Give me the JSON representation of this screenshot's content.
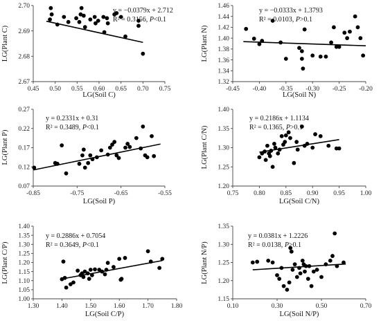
{
  "chart_data": [
    {
      "type": "scatter",
      "xlabel": "LG(Soil C)",
      "ylabel": "LG(Plant C)",
      "xlim": [
        0.45,
        0.75
      ],
      "ylim": [
        2.67,
        2.7
      ],
      "xticks": [
        0.45,
        0.5,
        0.55,
        0.6,
        0.65,
        0.7,
        0.75
      ],
      "yticks": [
        2.67,
        2.68,
        2.69,
        2.7
      ],
      "xtick_labels": [
        "0.45",
        "0.50",
        "0.55",
        "0.60",
        "0.65",
        "0.70",
        "0.75"
      ],
      "ytick_labels": [
        "2.67",
        "2.68",
        "2.69",
        "2.70"
      ],
      "equation": "y = −0.0379x + 2.712",
      "r2": "R² = 0.3156, ",
      "p": "P",
      "p_suffix": "<0.1",
      "trend": {
        "slope": -0.0379,
        "intercept": 2.712,
        "x_range": [
          0.48,
          0.7
        ]
      },
      "points": [
        [
          0.488,
          2.6945
        ],
        [
          0.49,
          2.699
        ],
        [
          0.492,
          2.6965
        ],
        [
          0.505,
          2.6925
        ],
        [
          0.52,
          2.6955
        ],
        [
          0.53,
          2.6935
        ],
        [
          0.555,
          2.6935
        ],
        [
          0.558,
          2.6965
        ],
        [
          0.56,
          2.699
        ],
        [
          0.565,
          2.696
        ],
        [
          0.568,
          2.6915
        ],
        [
          0.58,
          2.6945
        ],
        [
          0.59,
          2.6955
        ],
        [
          0.592,
          2.693
        ],
        [
          0.598,
          2.694
        ],
        [
          0.61,
          2.6955
        ],
        [
          0.618,
          2.695
        ],
        [
          0.62,
          2.693
        ],
        [
          0.635,
          2.6965
        ],
        [
          0.64,
          2.697
        ],
        [
          0.65,
          2.6955
        ],
        [
          0.66,
          2.6878
        ],
        [
          0.69,
          2.694
        ],
        [
          0.69,
          2.692
        ],
        [
          0.7,
          2.681
        ],
        [
          0.612,
          2.6895
        ],
        [
          0.548,
          2.695
        ]
      ]
    },
    {
      "type": "scatter",
      "xlabel": "LG(Soil N)",
      "ylabel": "LG(Plant N)",
      "xlim": [
        -0.45,
        -0.2
      ],
      "ylim": [
        1.32,
        1.46
      ],
      "xticks": [
        -0.45,
        -0.4,
        -0.35,
        -0.3,
        -0.25,
        -0.2
      ],
      "yticks": [
        1.32,
        1.34,
        1.36,
        1.38,
        1.4,
        1.42,
        1.44,
        1.46
      ],
      "xtick_labels": [
        "-0.45",
        "-0.40",
        "-0.35",
        "-0.30",
        "-0.25",
        "-0.20"
      ],
      "ytick_labels": [
        "1.32",
        "1.34",
        "1.36",
        "1.38",
        "1.40",
        "1.42",
        "1.44",
        "1.46"
      ],
      "equation": "y = −0.0333x + 1.3793",
      "r2": "R² = 0.0103, ",
      "p": "P",
      "p_suffix": ">0.1",
      "trend": {
        "slope": -0.0333,
        "intercept": 1.3793,
        "x_range": [
          -0.43,
          -0.2
        ]
      },
      "points": [
        [
          -0.425,
          1.417
        ],
        [
          -0.41,
          1.399
        ],
        [
          -0.4,
          1.389
        ],
        [
          -0.395,
          1.395
        ],
        [
          -0.375,
          1.432
        ],
        [
          -0.36,
          1.392
        ],
        [
          -0.35,
          1.362
        ],
        [
          -0.325,
          1.382
        ],
        [
          -0.32,
          1.376
        ],
        [
          -0.32,
          1.362
        ],
        [
          -0.318,
          1.344
        ],
        [
          -0.315,
          1.416
        ],
        [
          -0.3,
          1.368
        ],
        [
          -0.285,
          1.366
        ],
        [
          -0.275,
          1.366
        ],
        [
          -0.265,
          1.392
        ],
        [
          -0.26,
          1.42
        ],
        [
          -0.255,
          1.384
        ],
        [
          -0.25,
          1.384
        ],
        [
          -0.24,
          1.41
        ],
        [
          -0.235,
          1.4
        ],
        [
          -0.23,
          1.412
        ],
        [
          -0.22,
          1.44
        ],
        [
          -0.215,
          1.42
        ],
        [
          -0.21,
          1.4
        ],
        [
          -0.205,
          1.368
        ]
      ]
    },
    {
      "type": "scatter",
      "xlabel": "LG(Soil P)",
      "ylabel": "LG(Plant P)",
      "xlim": [
        -0.85,
        -0.55
      ],
      "ylim": [
        0.07,
        0.27
      ],
      "xticks": [
        -0.85,
        -0.75,
        -0.65,
        -0.55
      ],
      "yticks": [
        0.07,
        0.12,
        0.17,
        0.22,
        0.27
      ],
      "xtick_labels": [
        "-0.85",
        "-0.75",
        "-0.65",
        "-0.55"
      ],
      "ytick_labels": [
        "0.07",
        "0.12",
        "0.17",
        "0.22",
        "0.27"
      ],
      "equation": "y = 0.2331x + 0.31",
      "r2": "R² = 0.3489, ",
      "p": "P",
      "p_suffix": "<0.1",
      "trend": {
        "slope": 0.2331,
        "intercept": 0.31,
        "x_range": [
          -0.85,
          -0.56
        ]
      },
      "points": [
        [
          -0.848,
          0.118
        ],
        [
          -0.8,
          0.13
        ],
        [
          -0.795,
          0.128
        ],
        [
          -0.785,
          0.176
        ],
        [
          -0.775,
          0.103
        ],
        [
          -0.745,
          0.128
        ],
        [
          -0.738,
          0.15
        ],
        [
          -0.735,
          0.165
        ],
        [
          -0.732,
          0.118
        ],
        [
          -0.725,
          0.13
        ],
        [
          -0.72,
          0.15
        ],
        [
          -0.715,
          0.14
        ],
        [
          -0.705,
          0.145
        ],
        [
          -0.695,
          0.163
        ],
        [
          -0.68,
          0.152
        ],
        [
          -0.675,
          0.17
        ],
        [
          -0.67,
          0.178
        ],
        [
          -0.665,
          0.185
        ],
        [
          -0.66,
          0.15
        ],
        [
          -0.655,
          0.143
        ],
        [
          -0.64,
          0.17
        ],
        [
          -0.635,
          0.18
        ],
        [
          -0.63,
          0.172
        ],
        [
          -0.615,
          0.195
        ],
        [
          -0.605,
          0.168
        ],
        [
          -0.6,
          0.225
        ],
        [
          -0.595,
          0.15
        ],
        [
          -0.59,
          0.145
        ],
        [
          -0.58,
          0.2
        ],
        [
          -0.575,
          0.148
        ]
      ]
    },
    {
      "type": "scatter",
      "xlabel": "LG(Soil C/N)",
      "ylabel": "LG(Plant C/N)",
      "xlim": [
        0.75,
        1.0
      ],
      "ylim": [
        1.2,
        1.4
      ],
      "xticks": [
        0.75,
        0.8,
        0.85,
        0.9,
        0.95,
        1.0
      ],
      "yticks": [
        1.2,
        1.25,
        1.3,
        1.35,
        1.4
      ],
      "xtick_labels": [
        "0.75",
        "0.80",
        "0.85",
        "0.90",
        "0.95",
        "1.00"
      ],
      "ytick_labels": [
        "1.20",
        "1.25",
        "1.30",
        "1.35",
        "1.40"
      ],
      "equation": "y = 0.2186x + 1.1134",
      "r2": "R² = 0.1365, ",
      "p": "P",
      "p_suffix": ">0.1",
      "trend": {
        "slope": 0.2186,
        "intercept": 1.1134,
        "x_range": [
          0.8,
          0.95
        ]
      },
      "points": [
        [
          0.8,
          1.275
        ],
        [
          0.805,
          1.285
        ],
        [
          0.81,
          1.29
        ],
        [
          0.812,
          1.268
        ],
        [
          0.815,
          1.305
        ],
        [
          0.818,
          1.285
        ],
        [
          0.82,
          1.278
        ],
        [
          0.822,
          1.292
        ],
        [
          0.825,
          1.25
        ],
        [
          0.828,
          1.31
        ],
        [
          0.83,
          1.3
        ],
        [
          0.835,
          1.285
        ],
        [
          0.838,
          1.295
        ],
        [
          0.842,
          1.33
        ],
        [
          0.845,
          1.308
        ],
        [
          0.848,
          1.315
        ],
        [
          0.85,
          1.332
        ],
        [
          0.855,
          1.34
        ],
        [
          0.858,
          1.325
        ],
        [
          0.865,
          1.26
        ],
        [
          0.87,
          1.315
        ],
        [
          0.872,
          1.295
        ],
        [
          0.88,
          1.355
        ],
        [
          0.885,
          1.305
        ],
        [
          0.89,
          1.31
        ],
        [
          0.9,
          1.3
        ],
        [
          0.905,
          1.335
        ],
        [
          0.915,
          1.33
        ],
        [
          0.93,
          1.305
        ],
        [
          0.945,
          1.298
        ],
        [
          0.95,
          1.298
        ]
      ]
    },
    {
      "type": "scatter",
      "xlabel": "LG(Soil C/P)",
      "ylabel": "LG(Plant C/P)",
      "xlim": [
        1.3,
        1.8
      ],
      "ylim": [
        1.0,
        1.4
      ],
      "xticks": [
        1.3,
        1.4,
        1.5,
        1.6,
        1.7,
        1.8
      ],
      "yticks": [
        1.0,
        1.05,
        1.1,
        1.15,
        1.2,
        1.25,
        1.3,
        1.35,
        1.4
      ],
      "xtick_labels": [
        "1.30",
        "1.40",
        "1.50",
        "1.60",
        "1.70",
        "1.80"
      ],
      "ytick_labels": [
        "1.00",
        "1.05",
        "1.10",
        "1.15",
        "1.20",
        "1.25",
        "1.30",
        "1.35",
        "1.40"
      ],
      "equation": "y = 0.2886x + 0.7054",
      "r2": "R² = 0.3649, ",
      "p": "P",
      "p_suffix": "<0.1",
      "trend": {
        "slope": 0.2886,
        "intercept": 0.7054,
        "x_range": [
          1.4,
          1.75
        ]
      },
      "points": [
        [
          1.4,
          1.108
        ],
        [
          1.405,
          1.205
        ],
        [
          1.41,
          1.115
        ],
        [
          1.415,
          1.062
        ],
        [
          1.43,
          1.08
        ],
        [
          1.44,
          1.09
        ],
        [
          1.455,
          1.155
        ],
        [
          1.465,
          1.13
        ],
        [
          1.47,
          1.14
        ],
        [
          1.475,
          1.12
        ],
        [
          1.48,
          1.15
        ],
        [
          1.49,
          1.14
        ],
        [
          1.495,
          1.11
        ],
        [
          1.5,
          1.16
        ],
        [
          1.505,
          1.13
        ],
        [
          1.515,
          1.162
        ],
        [
          1.53,
          1.16
        ],
        [
          1.54,
          1.15
        ],
        [
          1.55,
          1.135
        ],
        [
          1.555,
          1.16
        ],
        [
          1.56,
          1.198
        ],
        [
          1.58,
          1.175
        ],
        [
          1.6,
          1.22
        ],
        [
          1.605,
          1.105
        ],
        [
          1.608,
          1.11
        ],
        [
          1.62,
          1.225
        ],
        [
          1.7,
          1.262
        ],
        [
          1.71,
          1.205
        ],
        [
          1.74,
          1.17
        ],
        [
          1.75,
          1.22
        ]
      ]
    },
    {
      "type": "scatter",
      "xlabel": "LG(Soil N/P)",
      "ylabel": "LG(Plant N/P)",
      "xlim": [
        0.1,
        0.7
      ],
      "ylim": [
        1.15,
        1.35
      ],
      "xticks": [
        0.1,
        0.3,
        0.5,
        0.7
      ],
      "yticks": [
        1.15,
        1.2,
        1.25,
        1.3,
        1.35
      ],
      "xtick_labels": [
        "0.10",
        "0.30",
        "0.50",
        "0.70"
      ],
      "ytick_labels": [
        "1.15",
        "1.20",
        "1.25",
        "1.30",
        "1.35"
      ],
      "equation": "y = 0.0381x + 1.2226",
      "r2": "R² = 0.0138, ",
      "p": "P",
      "p_suffix": ">0.1",
      "trend": {
        "slope": 0.0381,
        "intercept": 1.2226,
        "x_range": [
          0.19,
          0.61
        ]
      },
      "points": [
        [
          0.19,
          1.25
        ],
        [
          0.21,
          1.252
        ],
        [
          0.26,
          1.255
        ],
        [
          0.28,
          1.25
        ],
        [
          0.3,
          1.215
        ],
        [
          0.31,
          1.205
        ],
        [
          0.32,
          1.235
        ],
        [
          0.33,
          1.185
        ],
        [
          0.345,
          1.175
        ],
        [
          0.355,
          1.195
        ],
        [
          0.36,
          1.29
        ],
        [
          0.365,
          1.28
        ],
        [
          0.37,
          1.23
        ],
        [
          0.38,
          1.245
        ],
        [
          0.39,
          1.21
        ],
        [
          0.4,
          1.235
        ],
        [
          0.405,
          1.22
        ],
        [
          0.415,
          1.255
        ],
        [
          0.42,
          1.245
        ],
        [
          0.425,
          1.225
        ],
        [
          0.43,
          1.24
        ],
        [
          0.44,
          1.205
        ],
        [
          0.445,
          1.24
        ],
        [
          0.455,
          1.185
        ],
        [
          0.465,
          1.225
        ],
        [
          0.48,
          1.23
        ],
        [
          0.5,
          1.21
        ],
        [
          0.52,
          1.245
        ],
        [
          0.54,
          1.255
        ],
        [
          0.55,
          1.268
        ],
        [
          0.56,
          1.33
        ],
        [
          0.57,
          1.24
        ],
        [
          0.6,
          1.25
        ]
      ]
    }
  ]
}
